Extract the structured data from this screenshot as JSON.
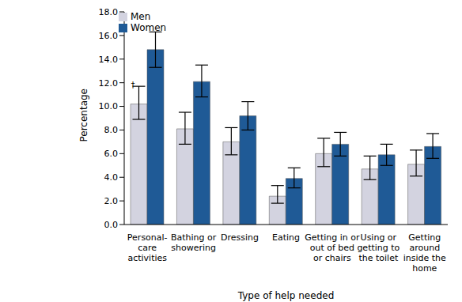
{
  "chart_data": {
    "type": "bar",
    "x_label": "Type of help needed",
    "y_label": "Percentage",
    "categories": [
      "Personal-\ncare\nactivities",
      "Bathing or\nshowering",
      "Dressing",
      "Eating",
      "Getting in or\nout of bed\nor chairs",
      "Using or\ngetting to\nthe toilet",
      "Getting\naround\ninside the\nhome"
    ],
    "series": [
      {
        "name": "Men",
        "color": "#d3d3e0",
        "values": [
          10.2,
          8.1,
          7.0,
          2.4,
          6.0,
          4.7,
          5.1
        ],
        "ci": [
          [
            8.9,
            11.7
          ],
          [
            6.8,
            9.5
          ],
          [
            5.9,
            8.2
          ],
          [
            1.8,
            3.3
          ],
          [
            4.9,
            7.3
          ],
          [
            3.8,
            5.8
          ],
          [
            4.1,
            6.3
          ]
        ]
      },
      {
        "name": "Women",
        "color": "#1f5a96",
        "values": [
          14.8,
          12.1,
          9.2,
          3.9,
          6.8,
          5.9,
          6.6
        ],
        "ci": [
          [
            13.3,
            16.3
          ],
          [
            10.8,
            13.5
          ],
          [
            8.0,
            10.4
          ],
          [
            3.1,
            4.8
          ],
          [
            5.8,
            7.8
          ],
          [
            5.0,
            6.8
          ],
          [
            5.6,
            7.7
          ]
        ]
      }
    ],
    "ylim": [
      0,
      18
    ],
    "yticks": [
      {
        "value": 0,
        "label": "0.0"
      },
      {
        "value": 2,
        "label": "2.0"
      },
      {
        "value": 4,
        "label": "4.0"
      },
      {
        "value": 6,
        "label": "6.0"
      },
      {
        "value": 8,
        "label": "8.0"
      },
      {
        "value": 10,
        "label": "10.0"
      },
      {
        "value": 12,
        "label": "12.0"
      },
      {
        "value": 14,
        "label": "14.0"
      },
      {
        "value": 16,
        "label": "16.0"
      },
      {
        "value": 18,
        "label": "18.0"
      }
    ],
    "grid": false,
    "legend": "upper left",
    "annotations": [
      {
        "text": "†",
        "series": "Men",
        "category": "Personal-\ncare\nactivities"
      }
    ]
  }
}
